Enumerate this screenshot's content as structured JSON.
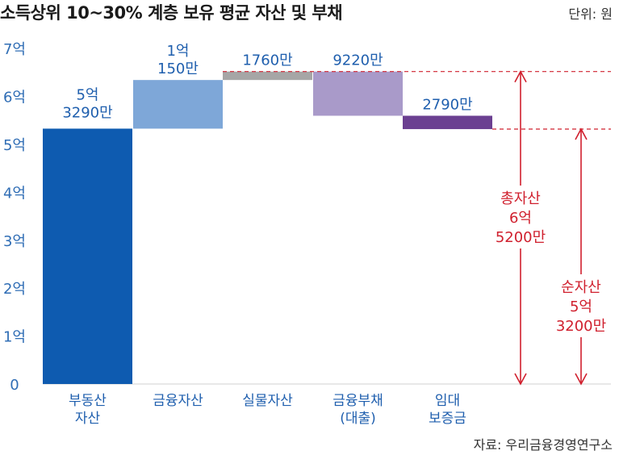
{
  "header": {
    "title": "소득상위 10~30% 계층 보유 평균 자산 및 부채",
    "unit": "단위: 원"
  },
  "footer": {
    "source": "자료: 우리금융경영연구소"
  },
  "colors": {
    "real_estate": "#0e5bb0",
    "financial_assets": "#7ea7d8",
    "physical_assets": "#a6a6a6",
    "financial_debt": "#a99ac9",
    "deposit": "#6b3f91",
    "annotation": "#d0202e",
    "axis_text": "#2f6db5"
  },
  "chart_data": {
    "type": "bar",
    "subtype": "waterfall",
    "unit": "원",
    "ylim": [
      0,
      7
    ],
    "y_unit": "억",
    "yticks": [
      "0",
      "1억",
      "2억",
      "3억",
      "4억",
      "5억",
      "6억",
      "7억"
    ],
    "grid": false,
    "categories": [
      [
        "부동산",
        "자산"
      ],
      [
        "금융자산"
      ],
      [
        "실물자산"
      ],
      [
        "금융부채",
        "(대출)"
      ],
      [
        "임대",
        "보증금"
      ]
    ],
    "bars": [
      {
        "start": 0,
        "end": 5.329,
        "label": [
          "5억",
          "3290만"
        ],
        "label_position": "inside"
      },
      {
        "start": 5.329,
        "end": 6.344,
        "label": [
          "1억",
          "150만"
        ],
        "label_position": "above"
      },
      {
        "start": 6.344,
        "end": 6.52,
        "label": [
          "1760만"
        ],
        "label_position": "above"
      },
      {
        "start": 6.52,
        "end": 5.598,
        "label": [
          "9220만"
        ],
        "label_position": "above"
      },
      {
        "start": 5.598,
        "end": 5.319,
        "label": [
          "2790만"
        ],
        "label_position": "above"
      }
    ],
    "annotations": [
      {
        "label": [
          "총자산",
          "6억",
          "5200만"
        ],
        "from": 0,
        "to": 6.52
      },
      {
        "label": [
          "순자산",
          "5억",
          "3200만"
        ],
        "from": 0,
        "to": 5.32
      }
    ]
  }
}
